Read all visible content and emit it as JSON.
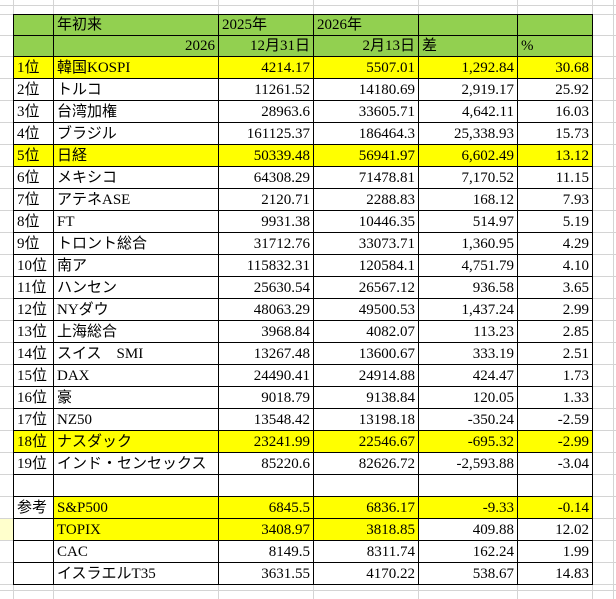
{
  "table": {
    "header_row1": {
      "rank": "",
      "name": "年初来",
      "col2025": "2025年",
      "col2026": "2026年",
      "diff": "",
      "pct": ""
    },
    "header_row2": {
      "rank": "",
      "name": "2026",
      "col2025": "12月31日",
      "col2026": "2月13日",
      "diff": "差",
      "pct": "%"
    },
    "rows": [
      {
        "rank": "1位",
        "name": "韓国KOSPI",
        "y2025": "4214.17",
        "y2026": "5507.01",
        "diff": "1,292.84",
        "pct": "30.68",
        "hl": "row"
      },
      {
        "rank": "2位",
        "name": "トルコ",
        "y2025": "11261.52",
        "y2026": "14180.69",
        "diff": "2,919.17",
        "pct": "25.92",
        "hl": "none"
      },
      {
        "rank": "3位",
        "name": "台湾加権",
        "y2025": "28963.6",
        "y2026": "33605.71",
        "diff": "4,642.11",
        "pct": "16.03",
        "hl": "none"
      },
      {
        "rank": "4位",
        "name": "ブラジル",
        "y2025": "161125.37",
        "y2026": "186464.3",
        "diff": "25,338.93",
        "pct": "15.73",
        "hl": "none"
      },
      {
        "rank": "5位",
        "name": "日経",
        "y2025": "50339.48",
        "y2026": "56941.97",
        "diff": "6,602.49",
        "pct": "13.12",
        "hl": "row"
      },
      {
        "rank": "6位",
        "name": "メキシコ",
        "y2025": "64308.29",
        "y2026": "71478.81",
        "diff": "7,170.52",
        "pct": "11.15",
        "hl": "none"
      },
      {
        "rank": "7位",
        "name": "アテネASE",
        "y2025": "2120.71",
        "y2026": "2288.83",
        "diff": "168.12",
        "pct": "7.93",
        "hl": "none"
      },
      {
        "rank": "8位",
        "name": "FT",
        "y2025": "9931.38",
        "y2026": "10446.35",
        "diff": "514.97",
        "pct": "5.19",
        "hl": "none"
      },
      {
        "rank": "9位",
        "name": "トロント総合",
        "y2025": "31712.76",
        "y2026": "33073.71",
        "diff": "1,360.95",
        "pct": "4.29",
        "hl": "none"
      },
      {
        "rank": "10位",
        "name": "南ア",
        "y2025": "115832.31",
        "y2026": "120584.1",
        "diff": "4,751.79",
        "pct": "4.10",
        "hl": "none"
      },
      {
        "rank": "11位",
        "name": "ハンセン",
        "y2025": "25630.54",
        "y2026": "26567.12",
        "diff": "936.58",
        "pct": "3.65",
        "hl": "none"
      },
      {
        "rank": "12位",
        "name": "NYダウ",
        "y2025": "48063.29",
        "y2026": "49500.53",
        "diff": "1,437.24",
        "pct": "2.99",
        "hl": "none"
      },
      {
        "rank": "13位",
        "name": "上海総合",
        "y2025": "3968.84",
        "y2026": "4082.07",
        "diff": "113.23",
        "pct": "2.85",
        "hl": "none"
      },
      {
        "rank": "14位",
        "name": "スイス　SMI",
        "y2025": "13267.48",
        "y2026": "13600.67",
        "diff": "333.19",
        "pct": "2.51",
        "hl": "none"
      },
      {
        "rank": "15位",
        "name": "DAX",
        "y2025": "24490.41",
        "y2026": "24914.88",
        "diff": "424.47",
        "pct": "1.73",
        "hl": "none"
      },
      {
        "rank": "16位",
        "name": "豪",
        "y2025": "9018.79",
        "y2026": "9138.84",
        "diff": "120.05",
        "pct": "1.33",
        "hl": "none"
      },
      {
        "rank": "17位",
        "name": "NZ50",
        "y2025": "13548.42",
        "y2026": "13198.18",
        "diff": "-350.24",
        "pct": "-2.59",
        "hl": "none"
      },
      {
        "rank": "18位",
        "name": "ナスダック",
        "y2025": "23241.99",
        "y2026": "22546.67",
        "diff": "-695.32",
        "pct": "-2.99",
        "hl": "row"
      },
      {
        "rank": "19位",
        "name": "インド・センセックス",
        "y2025": "85220.6",
        "y2026": "82626.72",
        "diff": "-2,593.88",
        "pct": "-3.04",
        "hl": "none"
      },
      {
        "rank": "",
        "name": "",
        "y2025": "",
        "y2026": "",
        "diff": "",
        "pct": "",
        "hl": "none"
      },
      {
        "rank": "参考",
        "name": "S&P500",
        "y2025": "6845.5",
        "y2026": "6836.17",
        "diff": "-9.33",
        "pct": "-0.14",
        "hl": "data"
      },
      {
        "rank": "",
        "name": "TOPIX",
        "y2025": "3408.97",
        "y2026": "3818.85",
        "diff": "409.88",
        "pct": "12.02",
        "hl": "left3",
        "gutter": true
      },
      {
        "rank": "",
        "name": "CAC",
        "y2025": "8149.5",
        "y2026": "8311.74",
        "diff": "162.24",
        "pct": "1.99",
        "hl": "none"
      },
      {
        "rank": "",
        "name": "イスラエルT35",
        "y2025": "3631.55",
        "y2026": "4170.22",
        "diff": "538.67",
        "pct": "14.83",
        "hl": "none"
      }
    ]
  },
  "colors": {
    "header_green": "#92D050",
    "highlight_yellow": "#FFFF00",
    "gutter_yellow": "#FFFFCC",
    "gridline": "#D4D4D4",
    "cell_border": "#000000"
  }
}
